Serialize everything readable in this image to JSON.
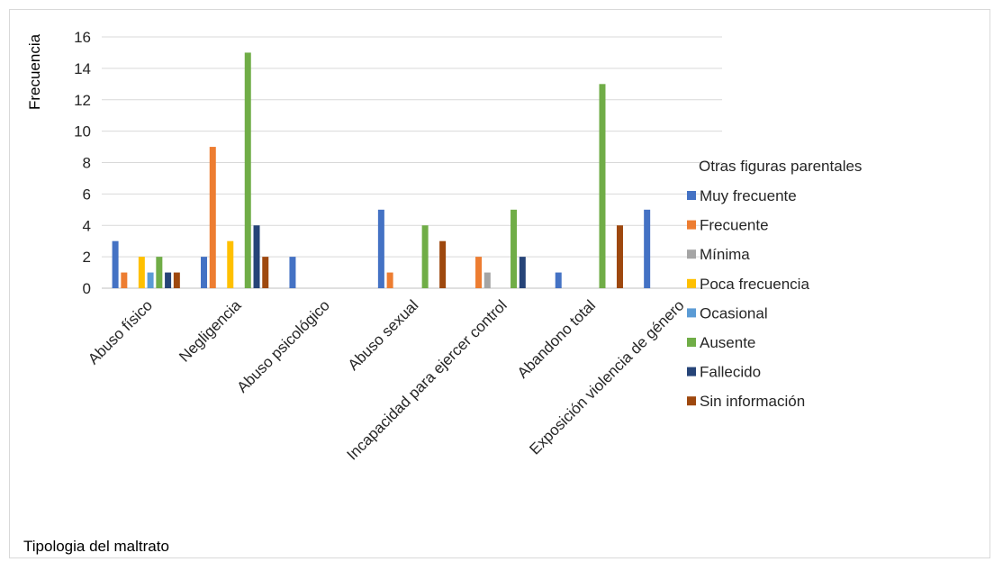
{
  "chart_data": {
    "type": "bar",
    "title": "",
    "xlabel": "Tipologia del maltrato",
    "ylabel": "Frecuencia",
    "ylim": [
      0,
      16
    ],
    "yticks": [
      0,
      2,
      4,
      6,
      8,
      10,
      12,
      14,
      16
    ],
    "grid": true,
    "legend": {
      "title": "Otras figuras parentales",
      "position": "right"
    },
    "categories": [
      "Abuso físico",
      "Negligencia",
      "Abuso psicológico",
      "Abuso sexual",
      "Incapacidad para ejercer control",
      "Abandono total",
      "Exposición violencia de género"
    ],
    "series": [
      {
        "name": "Muy frecuente",
        "color": "#4472C4",
        "values": [
          3,
          2,
          2,
          5,
          0,
          1,
          5
        ]
      },
      {
        "name": "Frecuente",
        "color": "#ED7D31",
        "values": [
          1,
          9,
          0,
          1,
          2,
          0,
          0
        ]
      },
      {
        "name": "Mínima",
        "color": "#A5A5A5",
        "values": [
          0,
          0,
          0,
          0,
          1,
          0,
          0
        ]
      },
      {
        "name": "Poca frecuencia",
        "color": "#FFC000",
        "values": [
          2,
          3,
          0,
          0,
          0,
          0,
          0
        ]
      },
      {
        "name": "Ocasional",
        "color": "#5B9BD5",
        "values": [
          1,
          0,
          0,
          0,
          0,
          0,
          0
        ]
      },
      {
        "name": "Ausente",
        "color": "#70AD47",
        "values": [
          2,
          15,
          0,
          4,
          5,
          13,
          0
        ]
      },
      {
        "name": "Fallecido",
        "color": "#264478",
        "values": [
          1,
          4,
          0,
          0,
          2,
          0,
          0
        ]
      },
      {
        "name": "Sin información",
        "color": "#9E480E",
        "values": [
          1,
          2,
          0,
          3,
          0,
          4,
          0
        ]
      }
    ]
  }
}
